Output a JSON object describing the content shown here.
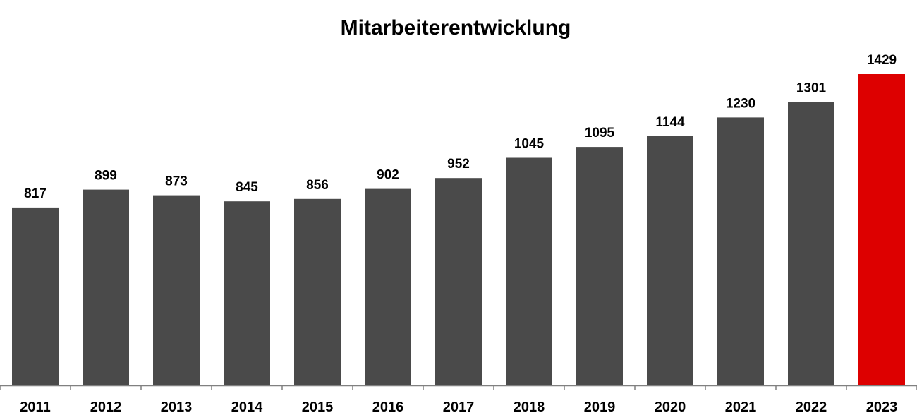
{
  "chart_data": {
    "type": "bar",
    "title": "Mitarbeiterentwicklung",
    "xlabel": "",
    "ylabel": "",
    "categories": [
      "2011",
      "2012",
      "2013",
      "2014",
      "2015",
      "2016",
      "2017",
      "2018",
      "2019",
      "2020",
      "2021",
      "2022",
      "2023"
    ],
    "values": [
      817,
      899,
      873,
      845,
      856,
      902,
      952,
      1045,
      1095,
      1144,
      1230,
      1301,
      1429
    ],
    "data_labels": [
      "817",
      "899",
      "873",
      "845",
      "856",
      "902",
      "952",
      "1045",
      "1095",
      "1144",
      "1230",
      "1301",
      "1429"
    ],
    "ylim": [
      0,
      1429
    ],
    "grid": false,
    "legend": "none",
    "bar_color": "#4a4a4a",
    "highlight_color": "#dd0000",
    "highlight_category": "2023",
    "axis_color": "#808080"
  }
}
